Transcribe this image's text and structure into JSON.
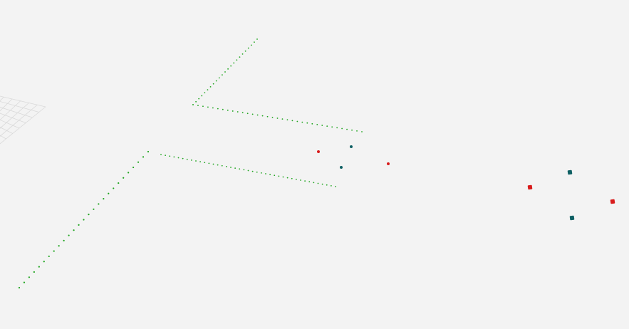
{
  "viewport": {
    "background_color": "#f3f3f3",
    "grid_color": "#d9d9d9",
    "trajectory_color": "#1fa51f",
    "marker_colors": {
      "red": "#d81b1b",
      "teal": "#0e5f63"
    }
  }
}
